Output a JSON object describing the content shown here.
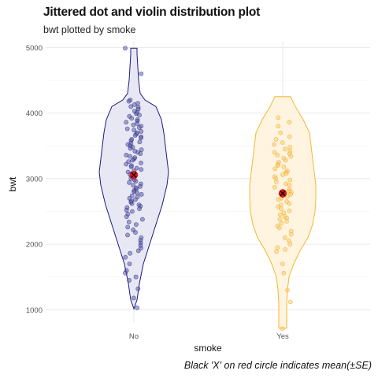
{
  "title": "Jittered dot and violin distribution plot",
  "subtitle": "bwt plotted by smoke",
  "caption": "Black 'X' on red circle indicates mean(±SE)",
  "chart_data": {
    "type": "violin",
    "xlabel": "smoke",
    "ylabel": "bwt",
    "categories": [
      "No",
      "Yes"
    ],
    "ylim": [
      800,
      5100
    ],
    "yticks": [
      1000,
      2000,
      3000,
      4000,
      5000
    ],
    "grid": true,
    "colors": {
      "No": {
        "fill": "#e6e6f3",
        "stroke": "#1a1a80",
        "point": "#5252a8",
        "point_edge": "#2b2b7a"
      },
      "Yes": {
        "fill": "#fff3dd",
        "stroke": "#f2b830",
        "point": "#f9c860",
        "point_edge": "#e9a92a"
      },
      "mean": "#e01515",
      "mean_marker": "#000000"
    },
    "series": [
      {
        "name": "No",
        "mean": 3055,
        "se": 65,
        "range": [
          1015,
          4990
        ],
        "profile": [
          [
            1015,
            0
          ],
          [
            1150,
            4
          ],
          [
            1400,
            7
          ],
          [
            1700,
            12
          ],
          [
            2000,
            20
          ],
          [
            2300,
            28
          ],
          [
            2600,
            36
          ],
          [
            2900,
            42
          ],
          [
            3100,
            44
          ],
          [
            3300,
            42
          ],
          [
            3500,
            40
          ],
          [
            3700,
            38
          ],
          [
            3900,
            35
          ],
          [
            4100,
            28
          ],
          [
            4200,
            14
          ],
          [
            4300,
            8
          ],
          [
            4500,
            6
          ],
          [
            4700,
            5
          ],
          [
            4900,
            4
          ],
          [
            4990,
            4
          ]
        ],
        "points": [
          4990,
          4600,
          4200,
          4180,
          4150,
          4130,
          4100,
          4090,
          4060,
          4030,
          4010,
          3990,
          3970,
          3950,
          3920,
          3900,
          3880,
          3860,
          3840,
          3820,
          3800,
          3780,
          3760,
          3740,
          3720,
          3700,
          3680,
          3660,
          3640,
          3620,
          3600,
          3580,
          3560,
          3540,
          3520,
          3500,
          3480,
          3460,
          3440,
          3420,
          3400,
          3380,
          3360,
          3340,
          3320,
          3300,
          3280,
          3260,
          3240,
          3220,
          3200,
          3180,
          3160,
          3140,
          3120,
          3100,
          3080,
          3060,
          3040,
          3020,
          3000,
          2980,
          2960,
          2940,
          2920,
          2900,
          2880,
          2860,
          2840,
          2820,
          2800,
          2780,
          2760,
          2740,
          2720,
          2700,
          2680,
          2660,
          2640,
          2620,
          2600,
          2580,
          2560,
          2540,
          2520,
          2500,
          2460,
          2420,
          2380,
          2340,
          2300,
          2260,
          2220,
          2180,
          2140,
          2100,
          2060,
          2020,
          1980,
          1940,
          1900,
          1860,
          1800,
          1700,
          1600,
          1560,
          1500,
          1450,
          1320,
          1180,
          1030
        ]
      },
      {
        "name": "Yes",
        "mean": 2775,
        "se": 68,
        "range": [
          720,
          4250
        ],
        "profile": [
          [
            720,
            5
          ],
          [
            900,
            5
          ],
          [
            1100,
            5
          ],
          [
            1300,
            6
          ],
          [
            1500,
            8
          ],
          [
            1700,
            14
          ],
          [
            1900,
            22
          ],
          [
            2100,
            32
          ],
          [
            2300,
            38
          ],
          [
            2500,
            41
          ],
          [
            2700,
            42
          ],
          [
            2900,
            42
          ],
          [
            3100,
            40
          ],
          [
            3300,
            38
          ],
          [
            3500,
            36
          ],
          [
            3700,
            34
          ],
          [
            3900,
            26
          ],
          [
            4100,
            16
          ],
          [
            4250,
            10
          ]
        ],
        "points": [
          3930,
          3860,
          3800,
          3700,
          3640,
          3600,
          3550,
          3520,
          3480,
          3450,
          3420,
          3400,
          3380,
          3360,
          3340,
          3310,
          3280,
          3250,
          3220,
          3200,
          3180,
          3150,
          3120,
          3100,
          3080,
          3060,
          3030,
          3000,
          2980,
          2950,
          2920,
          2900,
          2870,
          2840,
          2810,
          2790,
          2760,
          2730,
          2700,
          2680,
          2650,
          2620,
          2600,
          2570,
          2540,
          2510,
          2480,
          2450,
          2420,
          2400,
          2380,
          2350,
          2320,
          2280,
          2250,
          2200,
          2150,
          2100,
          2050,
          2000,
          1950,
          1920,
          1890,
          1700,
          1560,
          1300,
          1120,
          710
        ]
      }
    ]
  }
}
